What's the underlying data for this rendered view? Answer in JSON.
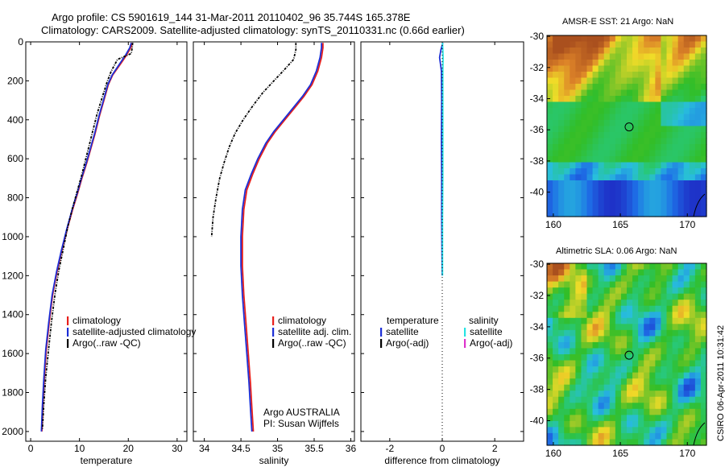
{
  "header": {
    "line1": "Argo profile: CS 5901619_144 31-Mar-2011 20110402_96 35.744S 165.378E",
    "line2": "Climatology: CARS2009. Satellite-adjusted climatology: synTS_20110331.nc (0.66d earlier)"
  },
  "stamp": "CSIRO 06-Apr-2011 10:31:42",
  "colors": {
    "climatology": "#e8201c",
    "satellite": "#1c2fd6",
    "argo": "#000000",
    "sat_salinity": "#26e3e3",
    "argo_adj_salinity": "#dd33cc"
  },
  "chart_data": [
    {
      "type": "line",
      "name": "temperature-profile",
      "xlabel": "temperature",
      "ylabel": "",
      "xlim": [
        -1,
        32
      ],
      "ylim": [
        2050,
        0
      ],
      "xticks": [
        0,
        10,
        20,
        30
      ],
      "yticks": [
        0,
        200,
        400,
        600,
        800,
        1000,
        1200,
        1400,
        1600,
        1800,
        2000
      ],
      "legend": [
        "climatology",
        "satellite-adjusted climatology",
        "Argo(..raw -QC)"
      ],
      "series": [
        {
          "name": "climatology",
          "color": "#e8201c",
          "x": [
            20.8,
            20.5,
            19.6,
            18.5,
            16.8,
            15.9,
            15.0,
            14.1,
            13.2,
            12.3,
            11.5,
            10.5,
            9.6,
            8.6,
            7.5,
            6.4,
            5.4,
            4.5,
            3.8,
            3.2,
            2.8,
            2.5,
            2.3
          ],
          "y": [
            5,
            30,
            70,
            110,
            170,
            220,
            300,
            380,
            470,
            550,
            620,
            700,
            780,
            860,
            960,
            1070,
            1180,
            1300,
            1440,
            1580,
            1730,
            1870,
            2000
          ]
        },
        {
          "name": "satellite-adjusted climatology",
          "color": "#1c2fd6",
          "x": [
            20.6,
            20.3,
            19.4,
            18.3,
            16.7,
            15.8,
            14.9,
            14.0,
            13.1,
            12.2,
            11.4,
            10.4,
            9.5,
            8.5,
            7.4,
            6.3,
            5.3,
            4.4,
            3.7,
            3.1,
            2.7,
            2.4,
            2.2
          ],
          "y": [
            5,
            30,
            70,
            110,
            170,
            220,
            300,
            380,
            470,
            550,
            620,
            700,
            780,
            860,
            960,
            1070,
            1180,
            1300,
            1440,
            1580,
            1730,
            1870,
            2000
          ]
        },
        {
          "name": "Argo(..raw -QC)",
          "color": "#000000",
          "x": [
            20.9,
            20.8,
            20.6,
            17.8,
            16.5,
            15.6,
            14.6,
            13.6,
            12.7,
            11.9,
            11.2,
            10.4,
            9.5,
            8.6,
            7.6,
            6.7,
            5.8,
            5.0,
            4.3,
            3.7,
            3.1,
            2.7,
            2.4
          ],
          "y": [
            5,
            30,
            60,
            90,
            150,
            210,
            290,
            370,
            460,
            540,
            610,
            690,
            770,
            850,
            950,
            1060,
            1170,
            1290,
            1430,
            1570,
            1720,
            1860,
            1990
          ]
        }
      ]
    },
    {
      "type": "line",
      "name": "salinity-profile",
      "xlabel": "salinity",
      "ylabel": "",
      "xlim": [
        33.85,
        36.05
      ],
      "ylim": [
        2050,
        0
      ],
      "xticks": [
        34,
        34.5,
        35,
        35.5,
        36
      ],
      "yticks": [
        0,
        200,
        400,
        600,
        800,
        1000,
        1200,
        1400,
        1600,
        1800,
        2000
      ],
      "legend": [
        "climatology",
        "satellite adj. clim.",
        "Argo(..raw -QC)"
      ],
      "annotation_lines": [
        "Argo AUSTRALIA",
        "PI: Susan Wijffels"
      ],
      "series": [
        {
          "name": "climatology",
          "color": "#e8201c",
          "x": [
            35.62,
            35.62,
            35.6,
            35.55,
            35.47,
            35.36,
            35.23,
            35.1,
            34.97,
            34.86,
            34.75,
            34.66,
            34.58,
            34.54,
            34.52,
            34.52,
            34.54,
            34.57,
            34.6,
            34.63,
            34.65,
            34.67
          ],
          "y": [
            5,
            30,
            80,
            150,
            220,
            280,
            340,
            400,
            460,
            520,
            600,
            680,
            760,
            860,
            1000,
            1150,
            1300,
            1450,
            1600,
            1750,
            1880,
            2000
          ]
        },
        {
          "name": "satellite adj. clim.",
          "color": "#1c2fd6",
          "x": [
            35.6,
            35.6,
            35.58,
            35.53,
            35.45,
            35.34,
            35.21,
            35.08,
            34.95,
            34.84,
            34.73,
            34.64,
            34.56,
            34.52,
            34.5,
            34.5,
            34.52,
            34.55,
            34.58,
            34.61,
            34.63,
            34.65
          ],
          "y": [
            5,
            30,
            80,
            150,
            220,
            280,
            340,
            400,
            460,
            520,
            600,
            680,
            760,
            860,
            1000,
            1150,
            1300,
            1450,
            1600,
            1750,
            1880,
            2000
          ]
        },
        {
          "name": "Argo(..raw -QC)",
          "color": "#000000",
          "x": [
            35.25,
            35.25,
            35.22,
            35.1,
            34.95,
            34.8,
            34.66,
            34.53,
            34.42,
            34.34,
            34.27,
            34.21,
            34.16,
            34.12,
            34.1
          ],
          "y": [
            5,
            40,
            90,
            140,
            200,
            260,
            330,
            400,
            470,
            540,
            620,
            700,
            800,
            900,
            1000
          ]
        }
      ]
    },
    {
      "type": "line",
      "name": "difference-profile",
      "xlabel": "difference from climatology",
      "ylabel": "",
      "xlim": [
        -3.1,
        3.1
      ],
      "ylim": [
        2050,
        0
      ],
      "xticks": [
        -2,
        0,
        2
      ],
      "yticks": [
        0,
        200,
        400,
        600,
        800,
        1000,
        1200,
        1400,
        1600,
        1800,
        2000
      ],
      "legend_header": [
        "temperature",
        "salinity"
      ],
      "legend": [
        "satellite",
        "Argo(-adj)",
        "satellite",
        "Argo(-adj)"
      ],
      "series": [
        {
          "name": "temperature satellite",
          "color": "#1c2fd6",
          "x": [
            0.02,
            -0.05,
            -0.1,
            -0.03,
            -0.02,
            -0.03,
            -0.02,
            -0.02,
            -0.01,
            0.0
          ],
          "y": [
            5,
            40,
            80,
            150,
            300,
            500,
            700,
            900,
            1100,
            1200
          ]
        },
        {
          "name": "salinity satellite",
          "color": "#26e3e3",
          "x": [
            0.01,
            0.02,
            0.03,
            0.02,
            0.02,
            0.02,
            0.02,
            0.01,
            0.01,
            0.01
          ],
          "y": [
            5,
            40,
            80,
            150,
            300,
            500,
            700,
            900,
            1100,
            1200
          ]
        },
        {
          "name": "zero reference",
          "color": "#000000",
          "dotted": true,
          "x": [
            0,
            0
          ],
          "y": [
            0,
            2050
          ]
        }
      ]
    }
  ],
  "maps": [
    {
      "title": "AMSR-E SST: 21 Argo: NaN",
      "palette": "sst",
      "xticks": [
        "160",
        "165",
        "170"
      ],
      "yticks": [
        "-30",
        "-32",
        "-34",
        "-36",
        "-38",
        "-40"
      ]
    },
    {
      "title": "Altimetric SLA: 0.06 Argo: NaN",
      "palette": "sla",
      "xticks": [
        "160",
        "165",
        "170"
      ],
      "yticks": [
        "-30",
        "-32",
        "-34",
        "-36",
        "-38",
        "-40"
      ]
    }
  ]
}
